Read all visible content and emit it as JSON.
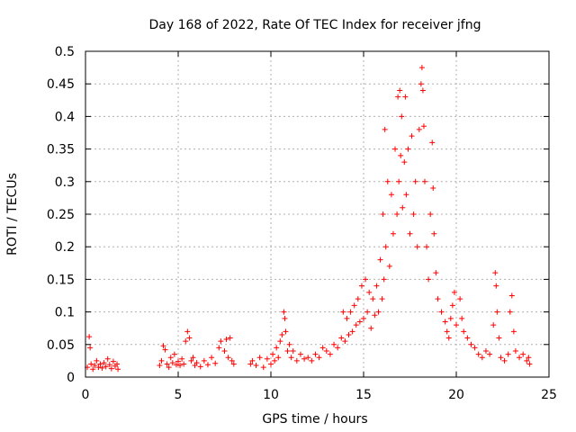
{
  "chart_data": {
    "type": "scatter",
    "title": "Day 168 of 2022, Rate Of TEC Index for receiver jfng",
    "xlabel": "GPS time / hours",
    "ylabel": "ROTI / TECUs",
    "xlim": [
      0,
      25
    ],
    "ylim": [
      0,
      0.5
    ],
    "x_ticks": [
      0,
      5,
      10,
      15,
      20,
      25
    ],
    "x_tick_labels": [
      "0",
      "5",
      "10",
      "15",
      "20",
      "25"
    ],
    "y_ticks": [
      0,
      0.05,
      0.1,
      0.15,
      0.2,
      0.25,
      0.3,
      0.35,
      0.4,
      0.45,
      0.5
    ],
    "y_tick_labels": [
      "0",
      "0.05",
      "0.1",
      "0.15",
      "0.2",
      "0.25",
      "0.3",
      "0.35",
      "0.4",
      "0.45",
      "0.5"
    ],
    "grid": true,
    "marker": "+",
    "color": "#ff0000",
    "series": [
      {
        "name": "ROTI",
        "points": [
          [
            0.1,
            0.015
          ],
          [
            0.2,
            0.062
          ],
          [
            0.25,
            0.045
          ],
          [
            0.3,
            0.02
          ],
          [
            0.4,
            0.012
          ],
          [
            0.5,
            0.018
          ],
          [
            0.6,
            0.025
          ],
          [
            0.7,
            0.015
          ],
          [
            0.8,
            0.02
          ],
          [
            0.9,
            0.014
          ],
          [
            1.0,
            0.022
          ],
          [
            1.1,
            0.016
          ],
          [
            1.2,
            0.028
          ],
          [
            1.3,
            0.019
          ],
          [
            1.4,
            0.013
          ],
          [
            1.5,
            0.024
          ],
          [
            1.6,
            0.017
          ],
          [
            1.7,
            0.02
          ],
          [
            1.75,
            0.012
          ],
          [
            4.0,
            0.018
          ],
          [
            4.1,
            0.025
          ],
          [
            4.2,
            0.048
          ],
          [
            4.3,
            0.042
          ],
          [
            4.4,
            0.02
          ],
          [
            4.5,
            0.015
          ],
          [
            4.6,
            0.03
          ],
          [
            4.7,
            0.022
          ],
          [
            4.8,
            0.035
          ],
          [
            4.9,
            0.019
          ],
          [
            5.0,
            0.024
          ],
          [
            5.1,
            0.018
          ],
          [
            5.2,
            0.028
          ],
          [
            5.3,
            0.02
          ],
          [
            5.4,
            0.055
          ],
          [
            5.5,
            0.07
          ],
          [
            5.6,
            0.06
          ],
          [
            5.7,
            0.025
          ],
          [
            5.8,
            0.03
          ],
          [
            5.9,
            0.018
          ],
          [
            6.0,
            0.022
          ],
          [
            6.2,
            0.016
          ],
          [
            6.4,
            0.025
          ],
          [
            6.6,
            0.019
          ],
          [
            6.8,
            0.03
          ],
          [
            7.0,
            0.021
          ],
          [
            7.2,
            0.045
          ],
          [
            7.3,
            0.055
          ],
          [
            7.5,
            0.04
          ],
          [
            7.6,
            0.058
          ],
          [
            7.7,
            0.03
          ],
          [
            7.8,
            0.06
          ],
          [
            7.9,
            0.025
          ],
          [
            8.0,
            0.02
          ],
          [
            8.9,
            0.02
          ],
          [
            9.0,
            0.025
          ],
          [
            9.2,
            0.018
          ],
          [
            9.4,
            0.03
          ],
          [
            9.6,
            0.015
          ],
          [
            9.8,
            0.028
          ],
          [
            10.0,
            0.02
          ],
          [
            10.1,
            0.035
          ],
          [
            10.2,
            0.025
          ],
          [
            10.3,
            0.045
          ],
          [
            10.4,
            0.03
          ],
          [
            10.5,
            0.055
          ],
          [
            10.6,
            0.065
          ],
          [
            10.7,
            0.1
          ],
          [
            10.75,
            0.09
          ],
          [
            10.8,
            0.07
          ],
          [
            10.9,
            0.04
          ],
          [
            11.0,
            0.05
          ],
          [
            11.1,
            0.03
          ],
          [
            11.2,
            0.04
          ],
          [
            11.4,
            0.025
          ],
          [
            11.6,
            0.035
          ],
          [
            11.8,
            0.028
          ],
          [
            12.0,
            0.03
          ],
          [
            12.2,
            0.025
          ],
          [
            12.4,
            0.035
          ],
          [
            12.6,
            0.03
          ],
          [
            12.8,
            0.045
          ],
          [
            13.0,
            0.04
          ],
          [
            13.2,
            0.035
          ],
          [
            13.4,
            0.05
          ],
          [
            13.6,
            0.045
          ],
          [
            13.8,
            0.06
          ],
          [
            13.9,
            0.1
          ],
          [
            14.0,
            0.055
          ],
          [
            14.1,
            0.09
          ],
          [
            14.2,
            0.065
          ],
          [
            14.3,
            0.1
          ],
          [
            14.4,
            0.07
          ],
          [
            14.5,
            0.11
          ],
          [
            14.6,
            0.08
          ],
          [
            14.7,
            0.12
          ],
          [
            14.8,
            0.085
          ],
          [
            14.9,
            0.14
          ],
          [
            15.0,
            0.09
          ],
          [
            15.1,
            0.15
          ],
          [
            15.2,
            0.1
          ],
          [
            15.3,
            0.13
          ],
          [
            15.4,
            0.075
          ],
          [
            15.5,
            0.12
          ],
          [
            15.6,
            0.095
          ],
          [
            15.7,
            0.14
          ],
          [
            15.8,
            0.1
          ],
          [
            15.9,
            0.18
          ],
          [
            16.0,
            0.12
          ],
          [
            16.05,
            0.25
          ],
          [
            16.1,
            0.15
          ],
          [
            16.15,
            0.38
          ],
          [
            16.2,
            0.2
          ],
          [
            16.3,
            0.3
          ],
          [
            16.4,
            0.17
          ],
          [
            16.5,
            0.28
          ],
          [
            16.6,
            0.22
          ],
          [
            16.7,
            0.35
          ],
          [
            16.8,
            0.25
          ],
          [
            16.85,
            0.43
          ],
          [
            16.9,
            0.3
          ],
          [
            16.95,
            0.44
          ],
          [
            17.0,
            0.34
          ],
          [
            17.05,
            0.4
          ],
          [
            17.1,
            0.26
          ],
          [
            17.2,
            0.33
          ],
          [
            17.25,
            0.43
          ],
          [
            17.3,
            0.28
          ],
          [
            17.4,
            0.35
          ],
          [
            17.5,
            0.22
          ],
          [
            17.6,
            0.37
          ],
          [
            17.7,
            0.25
          ],
          [
            17.8,
            0.3
          ],
          [
            17.9,
            0.2
          ],
          [
            18.0,
            0.38
          ],
          [
            18.1,
            0.45
          ],
          [
            18.15,
            0.475
          ],
          [
            18.2,
            0.44
          ],
          [
            18.25,
            0.385
          ],
          [
            18.3,
            0.3
          ],
          [
            18.4,
            0.2
          ],
          [
            18.5,
            0.15
          ],
          [
            18.6,
            0.25
          ],
          [
            18.7,
            0.36
          ],
          [
            18.75,
            0.29
          ],
          [
            18.8,
            0.22
          ],
          [
            18.9,
            0.16
          ],
          [
            19.0,
            0.12
          ],
          [
            19.2,
            0.1
          ],
          [
            19.4,
            0.085
          ],
          [
            19.5,
            0.07
          ],
          [
            19.6,
            0.06
          ],
          [
            19.7,
            0.09
          ],
          [
            19.8,
            0.11
          ],
          [
            19.9,
            0.13
          ],
          [
            20.0,
            0.08
          ],
          [
            20.2,
            0.12
          ],
          [
            20.3,
            0.09
          ],
          [
            20.4,
            0.07
          ],
          [
            20.6,
            0.06
          ],
          [
            20.8,
            0.05
          ],
          [
            21.0,
            0.045
          ],
          [
            21.2,
            0.035
          ],
          [
            21.4,
            0.03
          ],
          [
            21.6,
            0.04
          ],
          [
            21.8,
            0.035
          ],
          [
            22.0,
            0.08
          ],
          [
            22.1,
            0.16
          ],
          [
            22.15,
            0.14
          ],
          [
            22.2,
            0.1
          ],
          [
            22.3,
            0.06
          ],
          [
            22.4,
            0.03
          ],
          [
            22.6,
            0.025
          ],
          [
            22.8,
            0.035
          ],
          [
            22.9,
            0.1
          ],
          [
            23.0,
            0.125
          ],
          [
            23.1,
            0.07
          ],
          [
            23.2,
            0.04
          ],
          [
            23.4,
            0.03
          ],
          [
            23.6,
            0.035
          ],
          [
            23.8,
            0.025
          ],
          [
            23.9,
            0.03
          ],
          [
            23.95,
            0.02
          ]
        ]
      }
    ]
  }
}
